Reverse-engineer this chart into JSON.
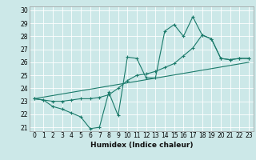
{
  "xlabel": "Humidex (Indice chaleur)",
  "xlim": [
    -0.5,
    23.5
  ],
  "ylim": [
    20.7,
    30.3
  ],
  "xticks": [
    0,
    1,
    2,
    3,
    4,
    5,
    6,
    7,
    8,
    9,
    10,
    11,
    12,
    13,
    14,
    15,
    16,
    17,
    18,
    19,
    20,
    21,
    22,
    23
  ],
  "yticks": [
    21,
    22,
    23,
    24,
    25,
    26,
    27,
    28,
    29,
    30
  ],
  "bg_color": "#cce8e8",
  "line_color": "#1a7a6a",
  "series1": {
    "x": [
      0,
      1,
      2,
      3,
      4,
      5,
      6,
      7,
      8,
      9,
      10,
      11,
      12,
      13,
      14,
      15,
      16,
      17,
      18,
      19,
      20,
      21,
      22,
      23
    ],
    "y": [
      23.2,
      23.1,
      22.6,
      22.4,
      22.1,
      21.8,
      20.9,
      21.0,
      23.7,
      21.9,
      26.4,
      26.3,
      24.8,
      24.8,
      28.4,
      28.9,
      28.0,
      29.5,
      28.1,
      27.8,
      26.3,
      26.2,
      26.3,
      26.3
    ]
  },
  "series2": {
    "x": [
      0,
      1,
      2,
      3,
      4,
      5,
      6,
      7,
      8,
      9,
      10,
      11,
      12,
      13,
      14,
      15,
      16,
      17,
      18,
      19,
      20,
      21,
      22,
      23
    ],
    "y": [
      23.2,
      23.1,
      23.0,
      23.0,
      23.1,
      23.2,
      23.2,
      23.3,
      23.5,
      24.0,
      24.6,
      25.0,
      25.1,
      25.3,
      25.6,
      25.9,
      26.5,
      27.1,
      28.1,
      27.8,
      26.3,
      26.2,
      26.3,
      26.3
    ]
  },
  "series3": {
    "x": [
      0,
      23
    ],
    "y": [
      23.2,
      26.0
    ]
  },
  "tick_fontsize": 5.5,
  "xlabel_fontsize": 6.5
}
